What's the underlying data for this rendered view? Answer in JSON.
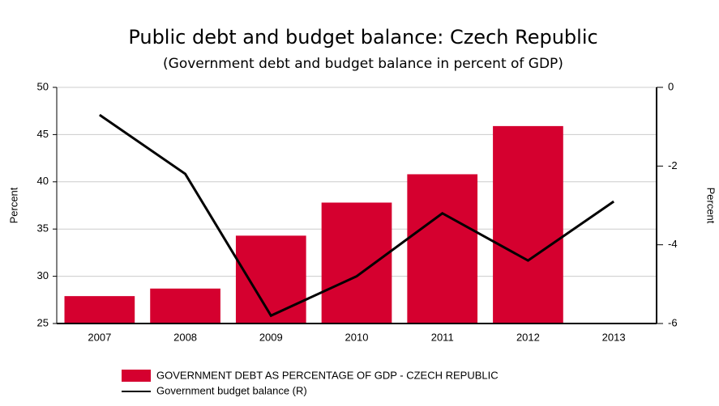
{
  "chart_data": {
    "type": "combo",
    "title": "Public debt and budget balance: Czech Republic",
    "subtitle": "(Government debt and budget balance in percent of GDP)",
    "y_label": "Percent",
    "y2_label": "Percent",
    "categories": [
      "2007",
      "2008",
      "2009",
      "2010",
      "2011",
      "2012",
      "2013"
    ],
    "series": [
      {
        "name": "GOVERNMENT DEBT AS PERCENTAGE OF GDP - CZECH REPUBLIC",
        "type": "bar",
        "color": "#d5002f",
        "values": [
          27.9,
          28.7,
          34.3,
          37.8,
          40.8,
          45.9,
          null
        ]
      },
      {
        "name": "Government budget balance (R)",
        "type": "line",
        "axis": "y2",
        "color": "#000000",
        "values": [
          -0.7,
          -2.2,
          -5.8,
          -4.8,
          -3.2,
          -4.4,
          -2.9
        ]
      }
    ],
    "ylim": [
      25,
      50
    ],
    "yticks": [
      25,
      30,
      35,
      40,
      45,
      50
    ],
    "y2lim": [
      -6,
      0
    ],
    "y2ticks": [
      -6,
      -4,
      -2,
      0
    ],
    "grid": true
  }
}
